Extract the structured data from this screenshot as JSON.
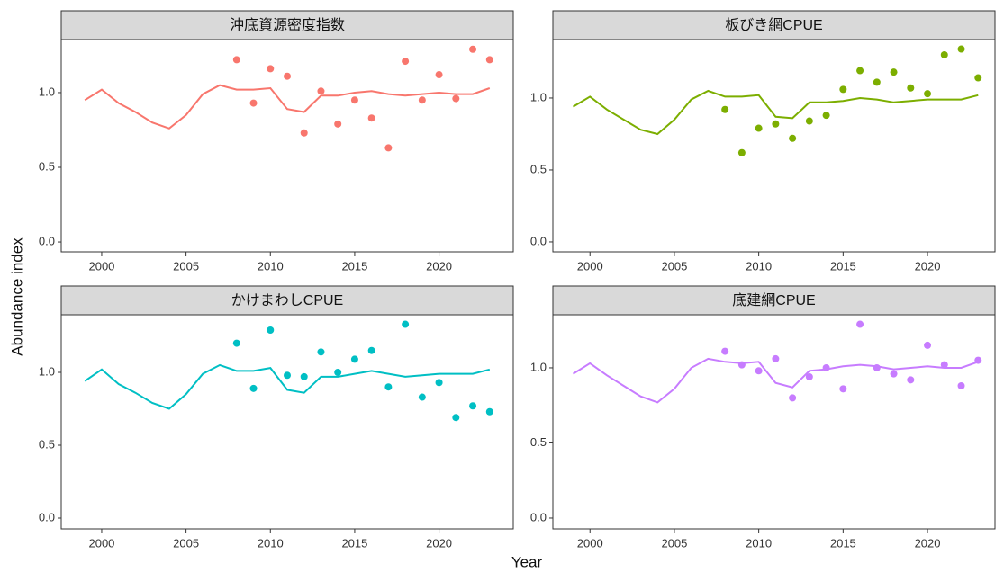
{
  "xlabel": "Year",
  "ylabel": "Abundance index",
  "chart_data": [
    {
      "type": "line",
      "title": "沖底資源密度指数",
      "color": "#f8766d",
      "x": [
        1999,
        2000,
        2001,
        2002,
        2003,
        2004,
        2005,
        2006,
        2007,
        2008,
        2009,
        2010,
        2011,
        2012,
        2013,
        2014,
        2015,
        2016,
        2017,
        2018,
        2019,
        2020,
        2021,
        2022,
        2023
      ],
      "values": [
        0.95,
        1.02,
        0.93,
        0.87,
        0.8,
        0.76,
        0.85,
        0.99,
        1.05,
        1.02,
        1.02,
        1.03,
        0.89,
        0.87,
        0.98,
        0.98,
        1.0,
        1.01,
        0.99,
        0.98,
        0.99,
        1.0,
        0.99,
        0.99,
        1.03
      ],
      "points_x": [
        2008,
        2009,
        2010,
        2011,
        2012,
        2013,
        2014,
        2015,
        2016,
        2017,
        2018,
        2019,
        2020,
        2021,
        2022,
        2023
      ],
      "points": [
        1.22,
        0.93,
        1.16,
        1.11,
        0.73,
        1.01,
        0.79,
        0.95,
        0.83,
        0.63,
        1.21,
        0.95,
        1.12,
        0.96,
        1.29,
        1.22
      ],
      "xlim": [
        1997.6,
        2024.4
      ],
      "xticks": [
        2000,
        2005,
        2010,
        2015,
        2020
      ],
      "ylim": [
        -0.066,
        1.355
      ],
      "yticks": [
        {
          "value": 0,
          "label": "0.0"
        },
        {
          "value": 0.5,
          "label": "0.5"
        },
        {
          "value": 1,
          "label": "1.0"
        }
      ]
    },
    {
      "type": "line",
      "title": "板びき網CPUE",
      "color": "#7cae00",
      "x": [
        1999,
        2000,
        2001,
        2002,
        2003,
        2004,
        2005,
        2006,
        2007,
        2008,
        2009,
        2010,
        2011,
        2012,
        2013,
        2014,
        2015,
        2016,
        2017,
        2018,
        2019,
        2020,
        2021,
        2022,
        2023
      ],
      "values": [
        0.94,
        1.01,
        0.92,
        0.85,
        0.78,
        0.75,
        0.85,
        0.99,
        1.05,
        1.01,
        1.01,
        1.02,
        0.87,
        0.86,
        0.97,
        0.97,
        0.98,
        1.0,
        0.99,
        0.97,
        0.98,
        0.99,
        0.99,
        0.99,
        1.02
      ],
      "points_x": [
        2008,
        2009,
        2010,
        2011,
        2012,
        2013,
        2014,
        2015,
        2016,
        2017,
        2018,
        2019,
        2020,
        2021,
        2022,
        2023
      ],
      "points": [
        0.92,
        0.62,
        0.79,
        0.82,
        0.72,
        0.84,
        0.88,
        1.06,
        1.19,
        1.11,
        1.18,
        1.07,
        1.03,
        1.3,
        1.34,
        1.14
      ],
      "xlim": [
        1997.8,
        2024.0
      ],
      "xticks": [
        2000,
        2005,
        2010,
        2015,
        2020
      ],
      "ylim": [
        -0.069,
        1.406
      ],
      "yticks": [
        {
          "value": 0,
          "label": "0.0"
        },
        {
          "value": 0.5,
          "label": "0.5"
        },
        {
          "value": 1,
          "label": "1.0"
        }
      ]
    },
    {
      "type": "line",
      "title": "かけまわしCPUE",
      "color": "#00bfc4",
      "x": [
        1999,
        2000,
        2001,
        2002,
        2003,
        2004,
        2005,
        2006,
        2007,
        2008,
        2009,
        2010,
        2011,
        2012,
        2013,
        2014,
        2015,
        2016,
        2017,
        2018,
        2019,
        2020,
        2021,
        2022,
        2023
      ],
      "values": [
        0.94,
        1.02,
        0.92,
        0.86,
        0.79,
        0.75,
        0.85,
        0.99,
        1.05,
        1.01,
        1.01,
        1.03,
        0.88,
        0.86,
        0.97,
        0.97,
        0.99,
        1.01,
        0.99,
        0.97,
        0.98,
        0.99,
        0.99,
        0.99,
        1.02
      ],
      "points_x": [
        2008,
        2009,
        2010,
        2011,
        2012,
        2013,
        2014,
        2015,
        2016,
        2017,
        2018,
        2019,
        2020,
        2021,
        2022,
        2023
      ],
      "points": [
        1.2,
        0.89,
        1.29,
        0.98,
        0.97,
        1.14,
        1.0,
        1.09,
        1.15,
        0.9,
        1.33,
        0.83,
        0.93,
        0.69,
        0.77,
        0.73
      ],
      "xlim": [
        1997.6,
        2024.4
      ],
      "xticks": [
        2000,
        2005,
        2010,
        2015,
        2020
      ],
      "ylim": [
        -0.074,
        1.395
      ],
      "yticks": [
        {
          "value": 0,
          "label": "0.0"
        },
        {
          "value": 0.5,
          "label": "0.5"
        },
        {
          "value": 1,
          "label": "1.0"
        }
      ]
    },
    {
      "type": "line",
      "title": "底建網CPUE",
      "color": "#c77cff",
      "x": [
        1999,
        2000,
        2001,
        2002,
        2003,
        2004,
        2005,
        2006,
        2007,
        2008,
        2009,
        2010,
        2011,
        2012,
        2013,
        2014,
        2015,
        2016,
        2017,
        2018,
        2019,
        2020,
        2021,
        2022,
        2023
      ],
      "values": [
        0.96,
        1.03,
        0.95,
        0.88,
        0.81,
        0.77,
        0.86,
        1.0,
        1.06,
        1.04,
        1.03,
        1.04,
        0.9,
        0.87,
        0.98,
        0.99,
        1.01,
        1.02,
        1.01,
        0.99,
        1.0,
        1.01,
        1.0,
        1.0,
        1.04
      ],
      "points_x": [
        2008,
        2009,
        2010,
        2011,
        2012,
        2013,
        2014,
        2015,
        2016,
        2017,
        2018,
        2019,
        2020,
        2021,
        2022,
        2023
      ],
      "points": [
        1.11,
        1.02,
        0.98,
        1.06,
        0.8,
        0.94,
        1.0,
        0.86,
        1.29,
        1.0,
        0.96,
        0.92,
        1.15,
        1.02,
        0.88,
        1.05
      ],
      "xlim": [
        1997.8,
        2024.0
      ],
      "xticks": [
        2000,
        2005,
        2010,
        2015,
        2020
      ],
      "ylim": [
        -0.072,
        1.353
      ],
      "yticks": [
        {
          "value": 0,
          "label": "0.0"
        },
        {
          "value": 0.5,
          "label": "0.5"
        },
        {
          "value": 1,
          "label": "1.0"
        }
      ]
    }
  ]
}
